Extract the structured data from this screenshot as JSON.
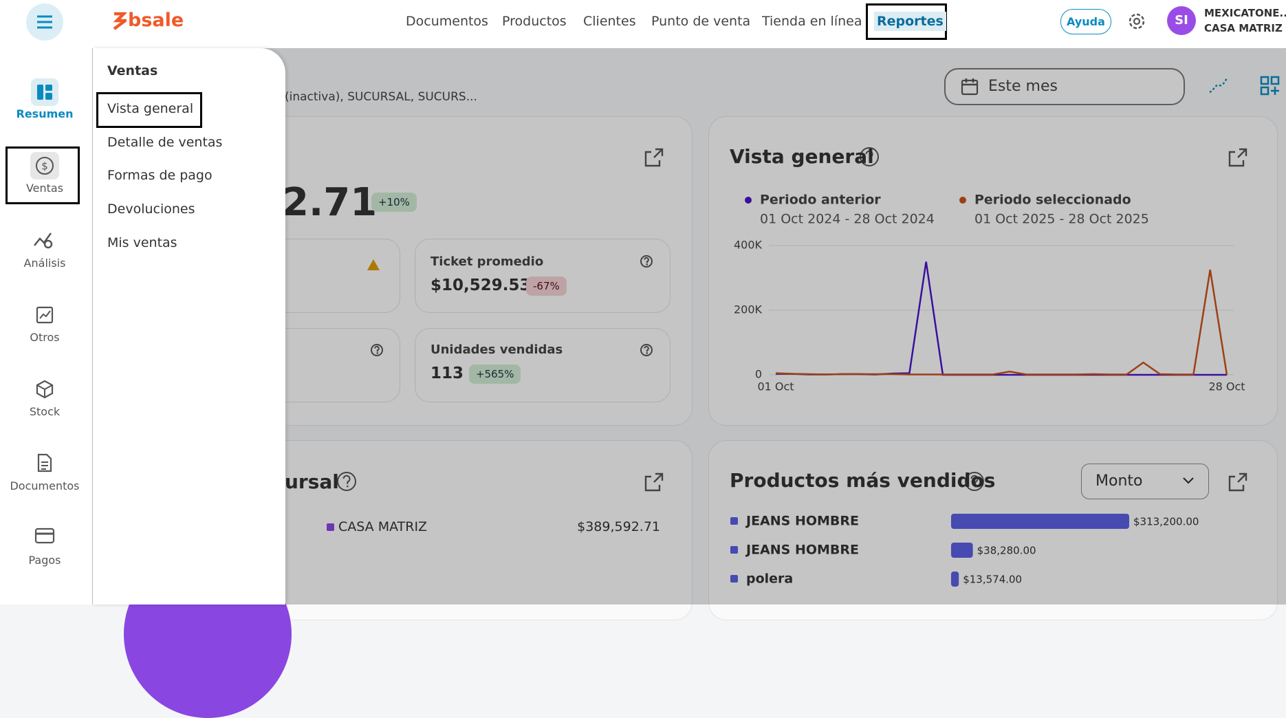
{
  "top_nav": {
    "logo": "bsale",
    "items": [
      "Documentos",
      "Productos",
      "Clientes",
      "Punto de venta",
      "Tienda en línea",
      "Reportes"
    ],
    "help": "Ayuda",
    "avatar": "SI",
    "account": [
      "MEXICATONE...",
      "CASA MATRIZ"
    ]
  },
  "sidebar": {
    "items": [
      "Resumen",
      "Ventas",
      "Análisis",
      "Otros",
      "Stock",
      "Documentos",
      "Pagos"
    ]
  },
  "dropdown": {
    "title": "Ventas",
    "items": [
      "Vista general",
      "Detalle de ventas",
      "Formas de pago",
      "Devoluciones",
      "Mis ventas"
    ]
  },
  "filters": {
    "branches": "(inactiva), SUCURSAL, SUCURS...",
    "date": "Este mes"
  },
  "summary_card": {
    "total_partial": "2.71",
    "change": "+10%",
    "metrics": [
      {
        "label": "Ticket promedio",
        "value": "$10,529.53",
        "change": "-67%"
      },
      {
        "label": "Unidades vendidas",
        "value": "113",
        "change": "+565%"
      }
    ]
  },
  "branch_card": {
    "title_partial": "ursal",
    "legend": [
      {
        "name": "CASA MATRIZ",
        "value": "$389,592.71"
      }
    ]
  },
  "chart_data": [
    {
      "type": "line",
      "title": "Vista general",
      "categories": [
        "01 Oct",
        null,
        null,
        null,
        null,
        null,
        null,
        null,
        null,
        null,
        null,
        null,
        null,
        null,
        null,
        null,
        null,
        null,
        null,
        null,
        null,
        null,
        null,
        null,
        null,
        null,
        null,
        "28 Oct"
      ],
      "series": [
        {
          "name": "Periodo anterior",
          "period": "01 Oct 2024 - 28 Oct 2024",
          "color": "#4a14c8",
          "values": [
            3000,
            3000,
            1000,
            1000,
            2000,
            2000,
            1000,
            4000,
            5000,
            350000,
            0,
            0,
            0,
            0,
            0,
            0,
            0,
            0,
            0,
            0,
            0,
            0,
            0,
            0,
            0,
            0,
            0,
            0
          ]
        },
        {
          "name": "Periodo seleccionado",
          "period": "01 Oct 2025 - 28 Oct 2025",
          "color": "#c8501a",
          "values": [
            5000,
            3000,
            2000,
            1000,
            2000,
            2000,
            2000,
            2000,
            1000,
            1000,
            1000,
            1000,
            1000,
            1000,
            10000,
            1000,
            1000,
            1000,
            1000,
            2000,
            1000,
            1000,
            38000,
            2000,
            1000,
            1000,
            325000,
            0
          ]
        }
      ],
      "ylim": [
        0,
        400000
      ],
      "yticks": [
        0,
        {
          "value": 200000,
          "label": "200K"
        },
        {
          "value": 400000,
          "label": "400K"
        }
      ],
      "grid": true
    },
    {
      "type": "bar",
      "orientation": "horizontal",
      "title": "Productos más vendidos",
      "control": "Monto",
      "categories": [
        "JEANS HOMBRE",
        "JEANS HOMBRE",
        "polera"
      ],
      "values": [
        313200,
        38280,
        13574
      ],
      "value_labels": [
        "$313,200.00",
        "$38,280.00",
        "$13,574.00"
      ],
      "color": "#5a5fe0"
    }
  ]
}
